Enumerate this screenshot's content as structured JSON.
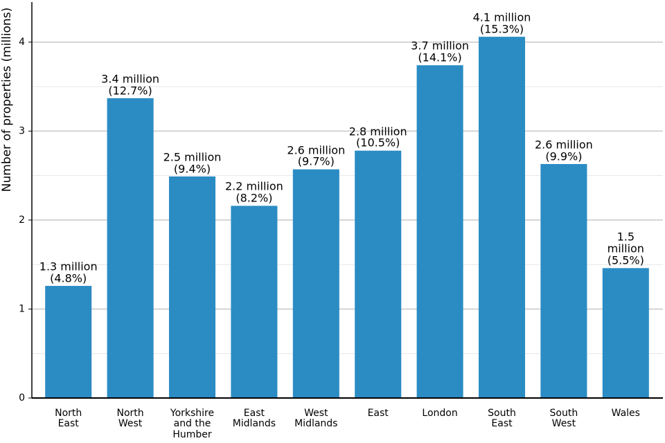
{
  "chart_data": {
    "type": "bar",
    "y_label": "Number of properties (millions)",
    "categories": [
      "North\nEast",
      "North\nWest",
      "Yorkshire\nand the\nHumber",
      "East\nMidlands",
      "West\nMidlands",
      "East",
      "London",
      "South\nEast",
      "South\nWest",
      "Wales"
    ],
    "values": [
      1.26,
      3.37,
      2.49,
      2.16,
      2.57,
      2.78,
      3.74,
      4.06,
      2.63,
      1.46
    ],
    "value_labels": [
      "1.3 million\n(4.8%)",
      "3.4 million\n(12.7%)",
      "2.5 million\n(9.4%)",
      "2.2 million\n(8.2%)",
      "2.6 million\n(9.7%)",
      "2.8 million\n(10.5%)",
      "3.7 million\n(14.1%)",
      "4.1 million\n(15.3%)",
      "2.6 million\n(9.9%)",
      "1.5 million\n(5.5%)"
    ],
    "color": "#2b8cc4",
    "ylim": [
      0,
      4.45
    ],
    "yticks": [
      0,
      1,
      2,
      3,
      4
    ],
    "yminorticks": [
      0.5,
      1.5,
      2.5,
      3.5
    ],
    "grid": true
  }
}
